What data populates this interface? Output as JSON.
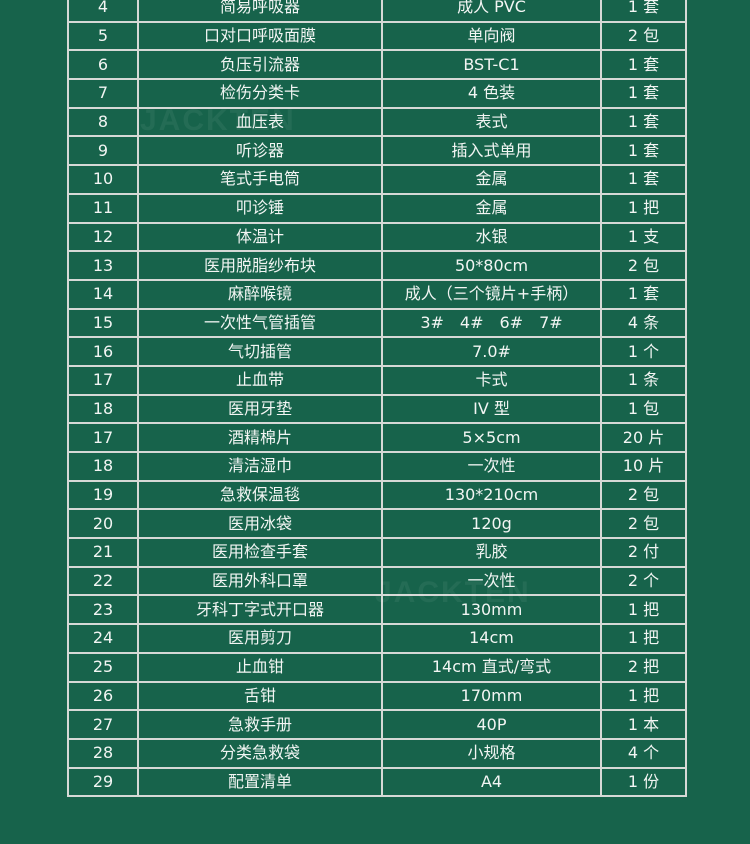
{
  "watermark": "JACKTEN",
  "colors": {
    "background": "#17634b",
    "grid": "#d6d9d6",
    "text": "#f2f5f3"
  },
  "rows": [
    [
      "4",
      "简易呼吸器",
      "成人 PVC",
      "1 套"
    ],
    [
      "5",
      "口对口呼吸面膜",
      "单向阀",
      "2 包"
    ],
    [
      "6",
      "负压引流器",
      "BST-C1",
      "1 套"
    ],
    [
      "7",
      "检伤分类卡",
      "4 色装",
      "1 套"
    ],
    [
      "8",
      "血压表",
      "表式",
      "1 套"
    ],
    [
      "9",
      "听诊器",
      "插入式单用",
      "1 套"
    ],
    [
      "10",
      "笔式手电筒",
      "金属",
      "1 套"
    ],
    [
      "11",
      "叩诊锤",
      "金属",
      "1 把"
    ],
    [
      "12",
      "体温计",
      "水银",
      "1 支"
    ],
    [
      "13",
      "医用脱脂纱布块",
      "50*80cm",
      "2 包"
    ],
    [
      "14",
      "麻醉喉镜",
      "成人（三个镜片+手柄）",
      "1 套"
    ],
    [
      "15",
      "一次性气管插管",
      "3#　4#　6#　7#",
      "4 条"
    ],
    [
      "16",
      "气切插管",
      "7.0#",
      "1 个"
    ],
    [
      "17",
      "止血带",
      "卡式",
      "1 条"
    ],
    [
      "18",
      "医用牙垫",
      "IV 型",
      "1 包"
    ],
    [
      "17",
      "酒精棉片",
      "5×5cm",
      "20 片"
    ],
    [
      "18",
      "清洁湿巾",
      "一次性",
      "10 片"
    ],
    [
      "19",
      "急救保温毯",
      "130*210cm",
      "2 包"
    ],
    [
      "20",
      "医用冰袋",
      "120g",
      "2 包"
    ],
    [
      "21",
      "医用检查手套",
      "乳胶",
      "2 付"
    ],
    [
      "22",
      "医用外科口罩",
      "一次性",
      "2 个"
    ],
    [
      "23",
      "牙科丁字式开口器",
      "130mm",
      "1 把"
    ],
    [
      "24",
      "医用剪刀",
      "14cm",
      "1 把"
    ],
    [
      "25",
      "止血钳",
      "14cm 直式/弯式",
      "2 把"
    ],
    [
      "26",
      "舌钳",
      "170mm",
      "1 把"
    ],
    [
      "27",
      "急救手册",
      "40P",
      "1 本"
    ],
    [
      "28",
      "分类急救袋",
      "小规格",
      "4 个"
    ],
    [
      "29",
      "配置清单",
      "A4",
      "1 份"
    ]
  ]
}
